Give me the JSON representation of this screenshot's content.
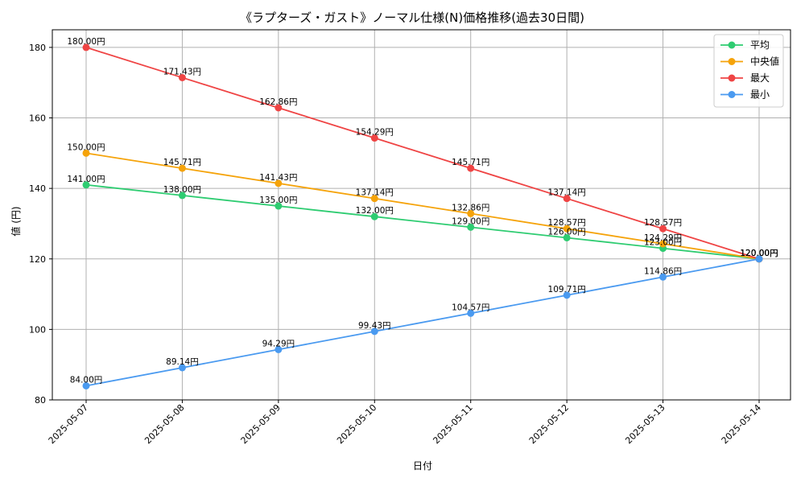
{
  "chart_data": {
    "type": "line",
    "title": "《ラプターズ・ガスト》ノーマル仕様(N)価格推移(過去30日間)",
    "xlabel": "日付",
    "ylabel": "値 (円)",
    "categories": [
      "2025-05-07",
      "2025-05-08",
      "2025-05-09",
      "2025-05-10",
      "2025-05-11",
      "2025-05-12",
      "2025-05-13",
      "2025-05-14"
    ],
    "ylim": [
      80,
      185
    ],
    "yticks": [
      80,
      100,
      120,
      140,
      160,
      180
    ],
    "grid": true,
    "legend_position": "top-right",
    "value_suffix": "円",
    "series": [
      {
        "name": "平均",
        "color": "#2ecc71",
        "values": [
          141.0,
          138.0,
          135.0,
          132.0,
          129.0,
          126.0,
          123.0,
          120.0
        ]
      },
      {
        "name": "中央値",
        "color": "#f5a30a",
        "values": [
          150.0,
          145.71,
          141.43,
          137.14,
          132.86,
          128.57,
          124.29,
          120.0
        ]
      },
      {
        "name": "最大",
        "color": "#ef4444",
        "values": [
          180.0,
          171.43,
          162.86,
          154.29,
          145.71,
          137.14,
          128.57,
          120.0
        ]
      },
      {
        "name": "最小",
        "color": "#4a9af0",
        "values": [
          84.0,
          89.14,
          94.29,
          99.43,
          104.57,
          109.71,
          114.86,
          120.0
        ]
      }
    ]
  }
}
